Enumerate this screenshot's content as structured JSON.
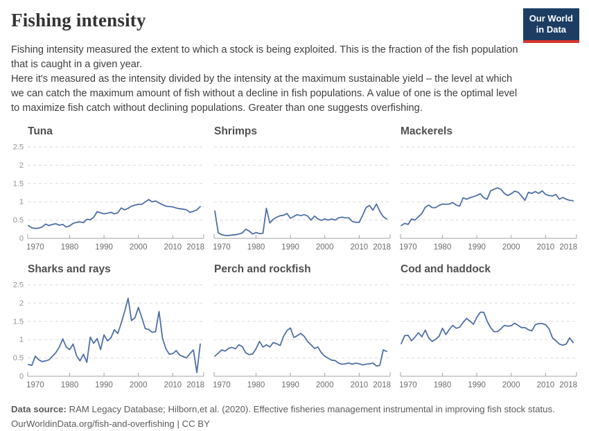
{
  "header": {
    "title": "Fishing intensity",
    "description": [
      "Fishing intensity measured the extent to which a stock is being exploited. This is the fraction of the fish population that is caught in a given year.",
      "Here it's measured as the intensity divided by the intensity at the maximum sustainable yield – the level at which we can catch the maximum amount of fish without a decline in fish populations. A value of one is the optimal level to maximize fish catch without declining populations. Greater than one suggests overfishing."
    ],
    "logo": {
      "line1": "Our World",
      "line2": "in Data",
      "bg_color": "#1d3d63",
      "stripe_color": "#d8352e"
    }
  },
  "styles": {
    "line_color": "#4d6fa7",
    "grid_color": "#d9d9d9",
    "axis_color": "#a3a3a3",
    "x_label_color": "#6c6c6c",
    "y_label_color": "#929292"
  },
  "axis": {
    "x_range": [
      1968,
      2019
    ],
    "y_range": [
      0,
      2.5
    ],
    "x_ticks": [
      1970,
      1980,
      1990,
      2000,
      2010,
      2018
    ],
    "x_tick_marks": [
      1980,
      1990,
      2000,
      2010
    ],
    "y_ticks": [
      0,
      0.5,
      1,
      1.5,
      2,
      2.5
    ],
    "grid": "dashed",
    "legend": "none"
  },
  "chart_data": [
    {
      "type": "line",
      "title": "Tuna",
      "show_y_labels": true,
      "x_start": 1968,
      "x_end": 2018,
      "ylim": [
        0,
        2.5
      ],
      "values": [
        0.35,
        0.29,
        0.27,
        0.28,
        0.31,
        0.39,
        0.35,
        0.38,
        0.4,
        0.36,
        0.38,
        0.31,
        0.34,
        0.41,
        0.44,
        0.45,
        0.43,
        0.52,
        0.51,
        0.58,
        0.73,
        0.7,
        0.67,
        0.69,
        0.71,
        0.67,
        0.7,
        0.83,
        0.78,
        0.82,
        0.88,
        0.91,
        0.93,
        0.93,
        1.0,
        1.06,
        1.0,
        1.02,
        0.97,
        0.92,
        0.88,
        0.87,
        0.86,
        0.83,
        0.81,
        0.8,
        0.78,
        0.71,
        0.74,
        0.78,
        0.87
      ]
    },
    {
      "type": "line",
      "title": "Shrimps",
      "show_y_labels": false,
      "x_start": 1968,
      "x_end": 2018,
      "ylim": [
        0,
        2.5
      ],
      "values": [
        0.75,
        0.15,
        0.1,
        0.08,
        0.08,
        0.09,
        0.1,
        0.12,
        0.15,
        0.25,
        0.2,
        0.12,
        0.16,
        0.13,
        0.14,
        0.82,
        0.42,
        0.52,
        0.58,
        0.62,
        0.63,
        0.68,
        0.55,
        0.6,
        0.65,
        0.62,
        0.65,
        0.61,
        0.5,
        0.61,
        0.53,
        0.49,
        0.53,
        0.5,
        0.53,
        0.5,
        0.56,
        0.58,
        0.56,
        0.56,
        0.46,
        0.44,
        0.44,
        0.63,
        0.84,
        0.9,
        0.77,
        0.94,
        0.74,
        0.59,
        0.53
      ]
    },
    {
      "type": "line",
      "title": "Mackerels",
      "show_y_labels": false,
      "x_start": 1968,
      "x_end": 2018,
      "ylim": [
        0,
        2.5
      ],
      "values": [
        0.35,
        0.41,
        0.38,
        0.53,
        0.5,
        0.59,
        0.68,
        0.85,
        0.91,
        0.84,
        0.84,
        0.9,
        0.94,
        0.93,
        0.94,
        0.98,
        0.91,
        0.88,
        1.11,
        1.07,
        1.11,
        1.14,
        1.17,
        1.22,
        1.11,
        1.07,
        1.3,
        1.34,
        1.38,
        1.34,
        1.23,
        1.17,
        1.22,
        1.29,
        1.26,
        1.16,
        1.04,
        1.26,
        1.23,
        1.28,
        1.23,
        1.3,
        1.2,
        1.17,
        1.16,
        1.2,
        1.07,
        1.12,
        1.07,
        1.04,
        1.03
      ]
    },
    {
      "type": "line",
      "title": "Sharks and rays",
      "show_y_labels": true,
      "x_start": 1968,
      "x_end": 2018,
      "ylim": [
        0,
        2.5
      ],
      "values": [
        0.32,
        0.3,
        0.55,
        0.45,
        0.4,
        0.42,
        0.45,
        0.55,
        0.65,
        0.8,
        1.02,
        0.8,
        0.73,
        0.88,
        0.56,
        0.42,
        0.6,
        0.38,
        1.07,
        0.9,
        1.03,
        0.73,
        1.13,
        0.97,
        1.05,
        1.27,
        1.17,
        1.45,
        1.77,
        2.13,
        1.52,
        1.6,
        1.88,
        1.6,
        1.3,
        1.28,
        1.2,
        1.22,
        1.77,
        1.04,
        0.75,
        0.6,
        0.62,
        0.7,
        0.58,
        0.54,
        0.5,
        0.62,
        0.72,
        0.1,
        0.88
      ]
    },
    {
      "type": "line",
      "title": "Perch and rockfish",
      "show_y_labels": false,
      "x_start": 1968,
      "x_end": 2018,
      "ylim": [
        0,
        2.5
      ],
      "values": [
        0.55,
        0.63,
        0.72,
        0.69,
        0.76,
        0.79,
        0.75,
        0.86,
        0.81,
        0.64,
        0.59,
        0.61,
        0.75,
        0.95,
        0.8,
        0.86,
        0.8,
        0.92,
        0.89,
        0.84,
        1.09,
        1.25,
        1.32,
        1.06,
        1.11,
        1.17,
        1.09,
        0.95,
        0.86,
        0.76,
        0.8,
        0.64,
        0.55,
        0.49,
        0.44,
        0.43,
        0.36,
        0.33,
        0.34,
        0.36,
        0.33,
        0.36,
        0.34,
        0.31,
        0.33,
        0.34,
        0.36,
        0.28,
        0.3,
        0.72,
        0.68
      ]
    },
    {
      "type": "line",
      "title": "Cod and haddock",
      "show_y_labels": false,
      "x_start": 1968,
      "x_end": 2018,
      "ylim": [
        0,
        2.5
      ],
      "values": [
        0.89,
        1.11,
        1.12,
        0.97,
        1.07,
        1.19,
        1.08,
        1.26,
        1.05,
        0.95,
        1.01,
        1.09,
        1.31,
        1.14,
        1.28,
        1.39,
        1.31,
        1.34,
        1.47,
        1.58,
        1.51,
        1.42,
        1.61,
        1.75,
        1.75,
        1.51,
        1.33,
        1.22,
        1.22,
        1.3,
        1.39,
        1.37,
        1.38,
        1.45,
        1.39,
        1.33,
        1.33,
        1.27,
        1.24,
        1.41,
        1.44,
        1.44,
        1.41,
        1.3,
        1.05,
        0.97,
        0.88,
        0.85,
        0.88,
        1.05,
        0.92
      ]
    }
  ],
  "footer": {
    "source_label": "Data source:",
    "source_text": "RAM Legacy Database; Hilborn,et al. (2020). Effective fisheries management instrumental in improving fish stock status.",
    "url": "OurWorldinData.org/fish-and-overfishing",
    "separator": "|",
    "license": "CC BY"
  }
}
